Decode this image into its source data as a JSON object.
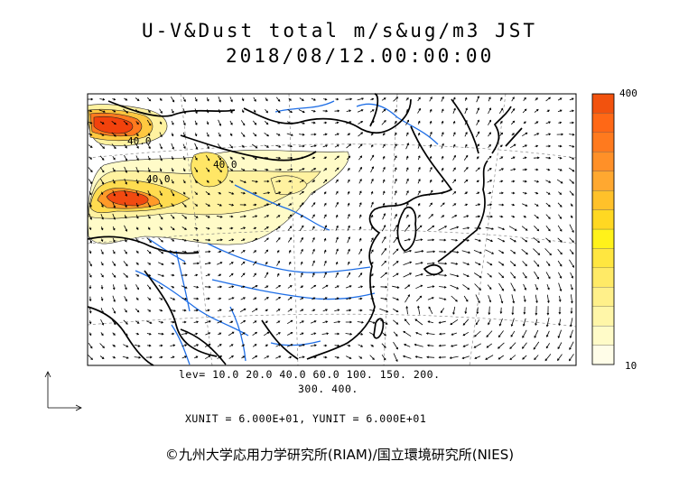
{
  "header": {
    "title": "U-V&Dust total m/s&ug/m3 JST",
    "datetime": "2018/08/12.00:00:00"
  },
  "map": {
    "description_layers": [
      "coastline",
      "rivers",
      "dust-contours",
      "wind-vectors"
    ],
    "contour_labels": [
      "40.0",
      "40.0",
      "40.0"
    ],
    "colors": {
      "coast": "#000000",
      "river": "#1e6ee6",
      "dust_low": "#fffbc8",
      "dust_mid": "#f5e86e",
      "dust_high": "#ff5a10",
      "dust_peak": "#e8380a"
    }
  },
  "legend": {
    "levels_line1": "lev= 10.0 20.0 40.0 60.0 100. 150. 200.",
    "levels_line2": "300. 400.",
    "units": "XUNIT = 6.000E+01, YUNIT = 6.000E+01",
    "colorbar_max": "400",
    "colorbar_min": "10",
    "colorbar_colors": [
      "#fffde8",
      "#fffbc8",
      "#fff6a8",
      "#fff08a",
      "#ffea66",
      "#ffe640",
      "#fff21a",
      "#ffd822",
      "#ffc12a",
      "#ffa830",
      "#ff9028",
      "#ff7a1e",
      "#ff6816",
      "#f2520e"
    ]
  },
  "footer": {
    "credit": "©九州大学応用力学研究所(RIAM)/国立環境研究所(NIES)"
  }
}
